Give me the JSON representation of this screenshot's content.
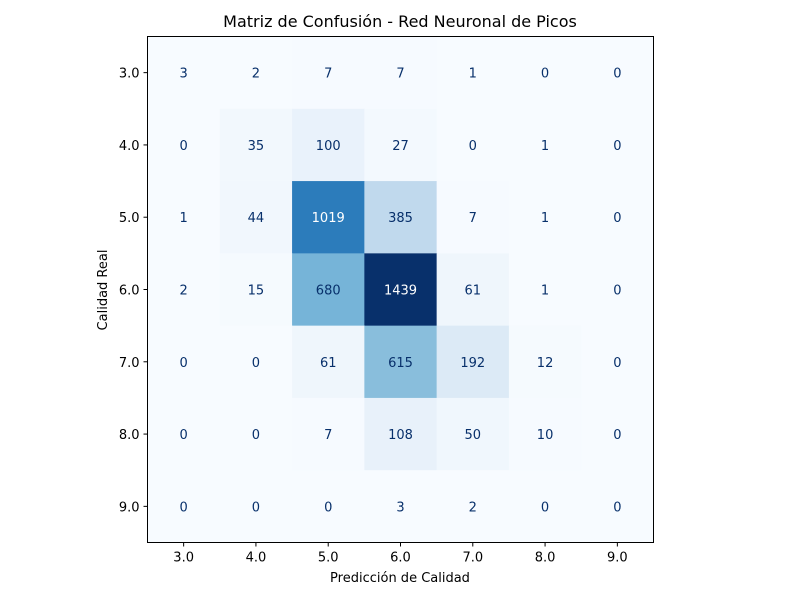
{
  "chart_data": {
    "type": "heatmap",
    "title": "Matriz de Confusión - Red Neuronal de Picos",
    "xlabel": "Predicción de Calidad",
    "ylabel": "Calidad Real",
    "x_categories": [
      "3.0",
      "4.0",
      "5.0",
      "6.0",
      "7.0",
      "8.0",
      "9.0"
    ],
    "y_categories": [
      "3.0",
      "4.0",
      "5.0",
      "6.0",
      "7.0",
      "8.0",
      "9.0"
    ],
    "values": [
      [
        3,
        2,
        7,
        7,
        1,
        0,
        0
      ],
      [
        0,
        35,
        100,
        27,
        0,
        1,
        0
      ],
      [
        1,
        44,
        1019,
        385,
        7,
        1,
        0
      ],
      [
        2,
        15,
        680,
        1439,
        61,
        1,
        0
      ],
      [
        0,
        0,
        61,
        615,
        192,
        12,
        0
      ],
      [
        0,
        0,
        7,
        108,
        50,
        10,
        0
      ],
      [
        0,
        0,
        0,
        3,
        2,
        0,
        0
      ]
    ],
    "colormap": "Blues",
    "value_range": [
      0,
      1439
    ],
    "grid": false,
    "colorbar": false
  }
}
